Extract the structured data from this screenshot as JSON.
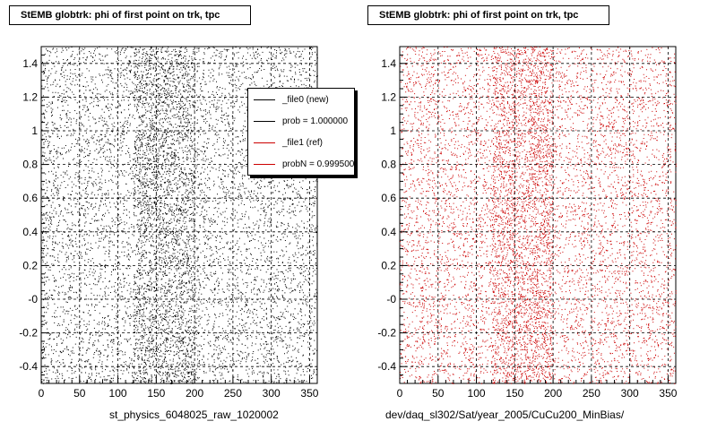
{
  "colors": {
    "file0": "#000000",
    "file1": "#cc0000",
    "grid": "#000000"
  },
  "footer_text": "",
  "legend": {
    "items": [
      {
        "label": "_file0 (new)",
        "color": "#000000"
      },
      {
        "label": "prob = 1.000000",
        "color": "#000000"
      },
      {
        "label": "_file1 (ref)",
        "color": "#cc0000"
      },
      {
        "label": "probN = 0.999500",
        "color": "#cc0000"
      }
    ]
  },
  "chart_data": [
    {
      "type": "scatter",
      "title": "StEMB globtrk: phi of first point on trk, tpc",
      "xlabel": "st_physics_6048025_raw_1020002",
      "ylabel": "",
      "xlim": [
        0,
        360
      ],
      "ylim": [
        -0.5,
        1.5
      ],
      "xticks": [
        0,
        50,
        100,
        150,
        200,
        250,
        300,
        350
      ],
      "yticks": [
        -0.4,
        -0.2,
        0,
        0.2,
        0.4,
        0.6,
        0.8,
        1,
        1.2,
        1.4
      ],
      "ytick_labels": [
        "-0.4",
        "-0.2",
        "-0",
        "0.2",
        "0.4",
        "0.6",
        "0.8",
        "1",
        "1.2",
        "1.4"
      ],
      "grid": true,
      "series": [
        {
          "name": "_file0 (new)",
          "color": "#000000",
          "density": "dense uniform scatter over x 0-360, y -0.5-1.5, denser around x 120-200"
        }
      ]
    },
    {
      "type": "scatter",
      "title": "StEMB globtrk: phi of first point on trk, tpc",
      "xlabel": "dev/daq_sl302/Sat/year_2005/CuCu200_MinBias/",
      "ylabel": "",
      "xlim": [
        0,
        360
      ],
      "ylim": [
        -0.5,
        1.5
      ],
      "xticks": [
        0,
        50,
        100,
        150,
        200,
        250,
        300,
        350
      ],
      "yticks": [
        -0.4,
        -0.2,
        0,
        0.2,
        0.4,
        0.6,
        0.8,
        1,
        1.2,
        1.4
      ],
      "ytick_labels": [
        "-0.4",
        "-0.2",
        "-0",
        "0.2",
        "0.4",
        "0.6",
        "0.8",
        "1",
        "1.2",
        "1.4"
      ],
      "grid": true,
      "series": [
        {
          "name": "_file1 (ref)",
          "color": "#cc0000",
          "density": "dense uniform scatter over x 0-360, y -0.5-1.5, denser around x 120-200"
        }
      ]
    }
  ]
}
